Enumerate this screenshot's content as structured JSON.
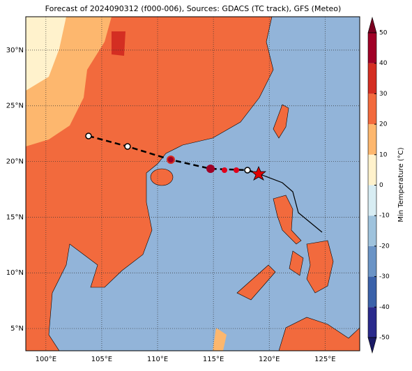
{
  "title": "Forecast of 2024090312 (f000-006), Sources: GDACS (TC track), GFS (Meteo)",
  "xlim": [
    98.2,
    128.1
  ],
  "ylim": [
    3,
    33
  ],
  "xticks": [
    {
      "value": 100,
      "label": "100°E"
    },
    {
      "value": 105,
      "label": "105°E"
    },
    {
      "value": 110,
      "label": "110°E"
    },
    {
      "value": 115,
      "label": "115°E"
    },
    {
      "value": 120,
      "label": "120°E"
    },
    {
      "value": 125,
      "label": "125°E"
    }
  ],
  "yticks": [
    {
      "value": 5,
      "label": "5°N"
    },
    {
      "value": 10,
      "label": "10°N"
    },
    {
      "value": 15,
      "label": "15°N"
    },
    {
      "value": 20,
      "label": "20°N"
    },
    {
      "value": 25,
      "label": "25°N"
    },
    {
      "value": 30,
      "label": "30°N"
    }
  ],
  "colorbar": {
    "label": "Min Temperature (°C)",
    "lim": [
      -50,
      50
    ],
    "ticks": [
      -50,
      -40,
      -30,
      -20,
      -10,
      0,
      10,
      20,
      30,
      40,
      50
    ],
    "colors": [
      "#2a2a8c",
      "#3b62aa",
      "#6b94c6",
      "#9fc3dd",
      "#d8edf3",
      "#fff2cc",
      "#fdb76e",
      "#f26a3d",
      "#d42e22",
      "#a00026"
    ],
    "under": "#1a1a66",
    "over": "#7a0020"
  }
}
